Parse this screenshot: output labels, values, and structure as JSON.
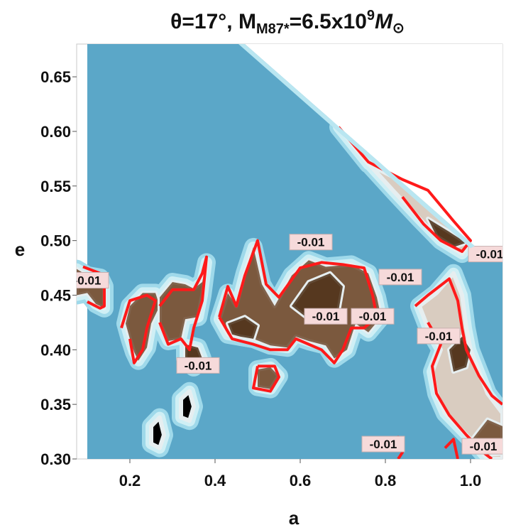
{
  "chart_data": {
    "type": "contour",
    "title": "θ=17°, M",
    "title_sub": "M87*",
    "title_rest": "=6.5x10",
    "title_sup": "9",
    "title_end": "M",
    "title_sun": "⊙",
    "xlabel": "a",
    "ylabel": "e",
    "xlim": [
      0.075,
      1.075
    ],
    "ylim": [
      0.3,
      0.68
    ],
    "x_ticks": [
      0.2,
      0.4,
      0.6,
      0.8,
      1.0
    ],
    "x_tick_labels": [
      "0.2",
      "0.4",
      "0.6",
      "0.8",
      "1.0"
    ],
    "y_ticks": [
      0.3,
      0.35,
      0.4,
      0.45,
      0.5,
      0.55,
      0.6,
      0.65
    ],
    "y_tick_labels": [
      "0.30",
      "0.35",
      "0.40",
      "0.45",
      "0.50",
      "0.55",
      "0.60",
      "0.65"
    ],
    "contour_level": -0.01,
    "contour_label": "-0.01",
    "colors": {
      "background": "#5ba7c8",
      "contour_line": "#ff1a1a",
      "label_bg": "#f6dada",
      "fill_levels": [
        "#9fd9ea",
        "#cfeff5",
        "#e6eef0",
        "#d9ccc0",
        "#c3ab94",
        "#9c7b60",
        "#6e4a2f",
        "#4a2d14"
      ]
    },
    "regions": [
      {
        "name": "left",
        "level": 6,
        "points": [
          [
            0.075,
            0.474
          ],
          [
            0.1,
            0.468
          ],
          [
            0.13,
            0.466
          ],
          [
            0.14,
            0.458
          ],
          [
            0.14,
            0.438
          ],
          [
            0.12,
            0.442
          ],
          [
            0.1,
            0.452
          ],
          [
            0.075,
            0.45
          ]
        ]
      },
      {
        "name": "c1",
        "level": 6,
        "points": [
          [
            0.2,
            0.44
          ],
          [
            0.23,
            0.452
          ],
          [
            0.26,
            0.452
          ],
          [
            0.27,
            0.44
          ],
          [
            0.25,
            0.424
          ],
          [
            0.24,
            0.402
          ],
          [
            0.22,
            0.39
          ],
          [
            0.21,
            0.398
          ],
          [
            0.2,
            0.41
          ],
          [
            0.19,
            0.424
          ]
        ]
      },
      {
        "name": "c2",
        "level": 6,
        "points": [
          [
            0.27,
            0.448
          ],
          [
            0.3,
            0.462
          ],
          [
            0.33,
            0.46
          ],
          [
            0.35,
            0.456
          ],
          [
            0.37,
            0.462
          ],
          [
            0.38,
            0.48
          ],
          [
            0.37,
            0.45
          ],
          [
            0.36,
            0.43
          ],
          [
            0.33,
            0.428
          ],
          [
            0.32,
            0.41
          ],
          [
            0.29,
            0.408
          ],
          [
            0.27,
            0.424
          ]
        ]
      },
      {
        "name": "c3",
        "level": 7,
        "points": [
          [
            0.33,
            0.405
          ],
          [
            0.36,
            0.402
          ],
          [
            0.37,
            0.392
          ],
          [
            0.35,
            0.384
          ],
          [
            0.33,
            0.392
          ]
        ]
      },
      {
        "name": "big",
        "level": 6,
        "points": [
          [
            0.41,
            0.428
          ],
          [
            0.43,
            0.452
          ],
          [
            0.45,
            0.44
          ],
          [
            0.47,
            0.47
          ],
          [
            0.49,
            0.494
          ],
          [
            0.51,
            0.46
          ],
          [
            0.54,
            0.44
          ],
          [
            0.58,
            0.468
          ],
          [
            0.62,
            0.482
          ],
          [
            0.66,
            0.476
          ],
          [
            0.72,
            0.478
          ],
          [
            0.76,
            0.47
          ],
          [
            0.78,
            0.448
          ],
          [
            0.79,
            0.43
          ],
          [
            0.76,
            0.416
          ],
          [
            0.73,
            0.424
          ],
          [
            0.71,
            0.4
          ],
          [
            0.68,
            0.392
          ],
          [
            0.66,
            0.404
          ],
          [
            0.62,
            0.408
          ],
          [
            0.59,
            0.412
          ],
          [
            0.57,
            0.402
          ],
          [
            0.53,
            0.404
          ],
          [
            0.49,
            0.41
          ],
          [
            0.46,
            0.412
          ],
          [
            0.43,
            0.414
          ]
        ]
      },
      {
        "name": "big-core",
        "level": 7,
        "points": [
          [
            0.58,
            0.44
          ],
          [
            0.62,
            0.462
          ],
          [
            0.67,
            0.47
          ],
          [
            0.7,
            0.458
          ],
          [
            0.69,
            0.436
          ],
          [
            0.66,
            0.426
          ],
          [
            0.62,
            0.428
          ]
        ]
      },
      {
        "name": "big-core2",
        "level": 7,
        "points": [
          [
            0.43,
            0.424
          ],
          [
            0.47,
            0.43
          ],
          [
            0.5,
            0.422
          ],
          [
            0.49,
            0.41
          ],
          [
            0.46,
            0.412
          ],
          [
            0.44,
            0.414
          ]
        ]
      },
      {
        "name": "small",
        "level": 6,
        "points": [
          [
            0.5,
            0.382
          ],
          [
            0.53,
            0.384
          ],
          [
            0.55,
            0.376
          ],
          [
            0.53,
            0.364
          ],
          [
            0.5,
            0.366
          ]
        ]
      },
      {
        "name": "diag",
        "level": 5,
        "points": [
          [
            0.69,
            0.604
          ],
          [
            0.76,
            0.57
          ],
          [
            0.84,
            0.554
          ],
          [
            0.9,
            0.546
          ],
          [
            0.95,
            0.52
          ],
          [
            1.0,
            0.498
          ],
          [
            0.98,
            0.488
          ],
          [
            0.93,
            0.5
          ],
          [
            0.88,
            0.52
          ],
          [
            0.82,
            0.545
          ],
          [
            0.75,
            0.575
          ]
        ]
      },
      {
        "name": "diag-core",
        "level": 7,
        "points": [
          [
            0.9,
            0.52
          ],
          [
            0.95,
            0.508
          ],
          [
            0.99,
            0.498
          ],
          [
            0.96,
            0.494
          ],
          [
            0.92,
            0.504
          ]
        ]
      },
      {
        "name": "right",
        "level": 5,
        "points": [
          [
            0.88,
            0.44
          ],
          [
            0.92,
            0.452
          ],
          [
            0.96,
            0.47
          ],
          [
            0.98,
            0.45
          ],
          [
            0.99,
            0.42
          ],
          [
            1.0,
            0.4
          ],
          [
            1.02,
            0.38
          ],
          [
            1.04,
            0.36
          ],
          [
            1.075,
            0.342
          ],
          [
            1.075,
            0.3
          ],
          [
            1.04,
            0.3
          ],
          [
            1.0,
            0.318
          ],
          [
            0.97,
            0.33
          ],
          [
            0.94,
            0.342
          ],
          [
            0.92,
            0.36
          ],
          [
            0.91,
            0.38
          ],
          [
            0.93,
            0.4
          ],
          [
            0.9,
            0.42
          ]
        ]
      },
      {
        "name": "right-core",
        "level": 7,
        "points": [
          [
            0.95,
            0.4
          ],
          [
            0.98,
            0.412
          ],
          [
            1.0,
            0.4
          ],
          [
            0.99,
            0.384
          ],
          [
            0.96,
            0.38
          ]
        ]
      },
      {
        "name": "right-core2",
        "level": 6,
        "points": [
          [
            1.0,
            0.316
          ],
          [
            1.04,
            0.336
          ],
          [
            1.075,
            0.33
          ],
          [
            1.075,
            0.305
          ],
          [
            1.04,
            0.304
          ]
        ]
      },
      {
        "name": "blob1",
        "level": 1,
        "points": [
          [
            0.32,
            0.355
          ],
          [
            0.34,
            0.362
          ],
          [
            0.35,
            0.348
          ],
          [
            0.34,
            0.335
          ],
          [
            0.32,
            0.338
          ]
        ]
      },
      {
        "name": "blob2",
        "level": 1,
        "points": [
          [
            0.25,
            0.33
          ],
          [
            0.27,
            0.338
          ],
          [
            0.28,
            0.322
          ],
          [
            0.27,
            0.31
          ],
          [
            0.25,
            0.314
          ]
        ]
      }
    ],
    "contour_lines": [
      [
        [
          0.09,
          0.476
        ],
        [
          0.13,
          0.47
        ],
        [
          0.14,
          0.458
        ],
        [
          0.14,
          0.44
        ],
        [
          0.13,
          0.438
        ],
        [
          0.1,
          0.444
        ]
      ],
      [
        [
          0.18,
          0.42
        ],
        [
          0.2,
          0.445
        ],
        [
          0.24,
          0.45
        ],
        [
          0.26,
          0.445
        ],
        [
          0.24,
          0.42
        ],
        [
          0.23,
          0.4
        ],
        [
          0.21,
          0.388
        ],
        [
          0.2,
          0.41
        ]
      ],
      [
        [
          0.27,
          0.44
        ],
        [
          0.3,
          0.455
        ],
        [
          0.35,
          0.455
        ],
        [
          0.37,
          0.47
        ],
        [
          0.38,
          0.485
        ],
        [
          0.37,
          0.445
        ],
        [
          0.35,
          0.42
        ],
        [
          0.34,
          0.4
        ],
        [
          0.32,
          0.41
        ],
        [
          0.29,
          0.405
        ],
        [
          0.27,
          0.425
        ]
      ],
      [
        [
          0.41,
          0.43
        ],
        [
          0.43,
          0.458
        ],
        [
          0.45,
          0.44
        ],
        [
          0.47,
          0.468
        ],
        [
          0.5,
          0.5
        ],
        [
          0.52,
          0.46
        ],
        [
          0.55,
          0.448
        ],
        [
          0.6,
          0.475
        ],
        [
          0.65,
          0.48
        ],
        [
          0.7,
          0.478
        ],
        [
          0.75,
          0.475
        ],
        [
          0.77,
          0.45
        ],
        [
          0.78,
          0.43
        ],
        [
          0.75,
          0.42
        ],
        [
          0.72,
          0.42
        ],
        [
          0.7,
          0.4
        ],
        [
          0.68,
          0.388
        ],
        [
          0.65,
          0.4
        ],
        [
          0.62,
          0.405
        ],
        [
          0.59,
          0.41
        ],
        [
          0.57,
          0.4
        ],
        [
          0.53,
          0.4
        ],
        [
          0.49,
          0.405
        ],
        [
          0.44,
          0.41
        ],
        [
          0.41,
          0.43
        ]
      ],
      [
        [
          0.5,
          0.385
        ],
        [
          0.54,
          0.385
        ],
        [
          0.55,
          0.375
        ],
        [
          0.53,
          0.362
        ],
        [
          0.49,
          0.365
        ],
        [
          0.5,
          0.385
        ]
      ],
      [
        [
          0.69,
          0.604
        ],
        [
          0.76,
          0.572
        ],
        [
          0.84,
          0.556
        ],
        [
          0.9,
          0.546
        ],
        [
          0.96,
          0.518
        ],
        [
          1.0,
          0.5
        ],
        [
          0.98,
          0.49
        ],
        [
          0.93,
          0.5
        ],
        [
          0.89,
          0.515
        ],
        [
          0.84,
          0.54
        ]
      ],
      [
        [
          0.87,
          0.44
        ],
        [
          0.9,
          0.45
        ],
        [
          0.95,
          0.465
        ],
        [
          0.97,
          0.445
        ],
        [
          0.98,
          0.42
        ],
        [
          0.99,
          0.4
        ],
        [
          1.02,
          0.376
        ],
        [
          1.05,
          0.358
        ],
        [
          1.075,
          0.35
        ]
      ],
      [
        [
          0.9,
          0.425
        ],
        [
          0.93,
          0.405
        ],
        [
          0.91,
          0.385
        ],
        [
          0.92,
          0.36
        ],
        [
          0.95,
          0.34
        ],
        [
          0.99,
          0.322
        ],
        [
          1.03,
          0.306
        ],
        [
          1.05,
          0.3
        ]
      ],
      [
        [
          0.81,
          0.31
        ],
        [
          0.83,
          0.32
        ],
        [
          0.84,
          0.306
        ],
        [
          0.83,
          0.3
        ]
      ],
      [
        [
          0.94,
          0.31
        ],
        [
          0.96,
          0.318
        ],
        [
          0.97,
          0.3
        ]
      ]
    ],
    "contour_label_positions": [
      [
        0.1,
        0.463
      ],
      [
        0.625,
        0.498
      ],
      [
        0.66,
        0.43
      ],
      [
        0.77,
        0.43
      ],
      [
        0.835,
        0.466
      ],
      [
        0.925,
        0.412
      ],
      [
        0.36,
        0.385
      ],
      [
        0.795,
        0.313
      ],
      [
        1.03,
        0.311
      ],
      [
        1.045,
        0.487
      ]
    ]
  }
}
